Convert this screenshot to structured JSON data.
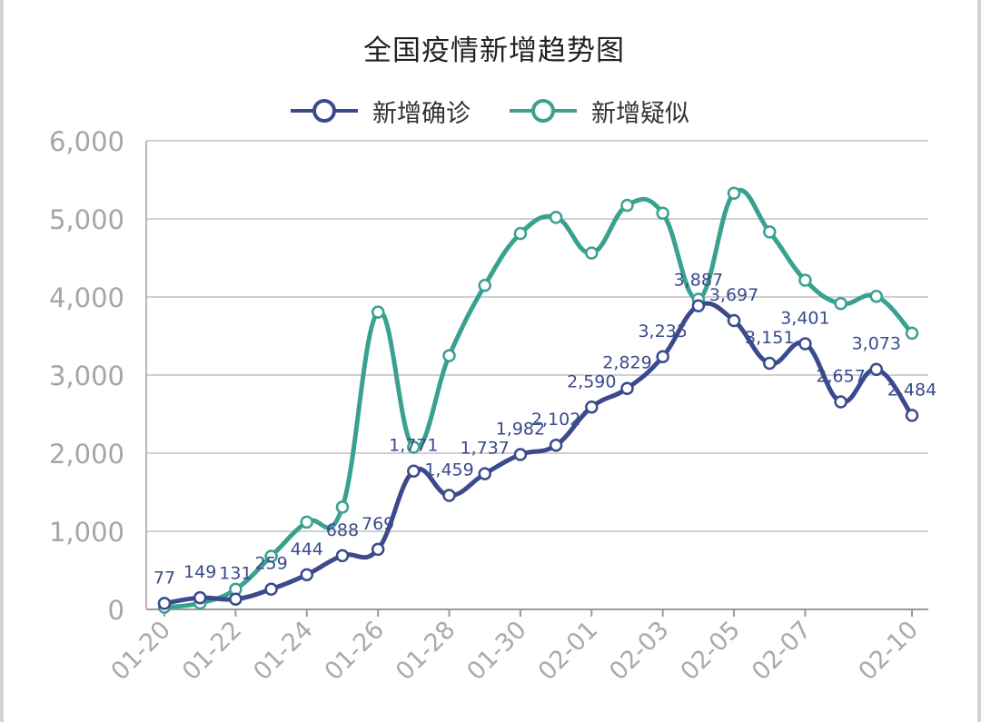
{
  "title": "全国疫情新增趋势图",
  "chart_data": {
    "type": "line",
    "title": "全国疫情新增趋势图",
    "categories": [
      "01-20",
      "01-21",
      "01-22",
      "01-23",
      "01-24",
      "01-25",
      "01-26",
      "01-27",
      "01-28",
      "01-29",
      "01-30",
      "01-31",
      "02-01",
      "02-02",
      "02-03",
      "02-04",
      "02-05",
      "02-06",
      "02-07",
      "02-08",
      "02-09",
      "02-10"
    ],
    "tick_labels": [
      "01-20",
      "01-22",
      "01-24",
      "01-26",
      "01-28",
      "01-30",
      "02-01",
      "02-03",
      "02-05",
      "02-07",
      "02-10"
    ],
    "series": [
      {
        "name": "新增确诊",
        "color": "#3a4a8c",
        "values": [
          77,
          149,
          131,
          259,
          444,
          688,
          769,
          1771,
          1459,
          1737,
          1982,
          2102,
          2590,
          2829,
          3235,
          3887,
          3697,
          3151,
          3401,
          2657,
          3073,
          2484
        ],
        "data_labels": [
          "77",
          "149",
          "131",
          "259",
          "444",
          "688",
          "769",
          "1,771",
          "1,459",
          "1,737",
          "1,982",
          "2,102",
          "2,590",
          "2,829",
          "3,235",
          "3,887",
          "3,697",
          "3,151",
          "3,401",
          "2,657",
          "3,073",
          "2,484"
        ]
      },
      {
        "name": "新增疑似",
        "color": "#3aa090",
        "values": [
          27,
          80,
          257,
          680,
          1118,
          1309,
          3806,
          2077,
          3248,
          4148,
          4812,
          5019,
          4562,
          5173,
          5072,
          3971,
          5328,
          4833,
          4214,
          3916,
          4008,
          3536
        ]
      }
    ],
    "ylim": [
      0,
      6000
    ],
    "yticks": [
      "0",
      "1,000",
      "2,000",
      "3,000",
      "4,000",
      "5,000",
      "6,000"
    ],
    "grid": true,
    "legend_position": "top-center",
    "smooth": true
  }
}
